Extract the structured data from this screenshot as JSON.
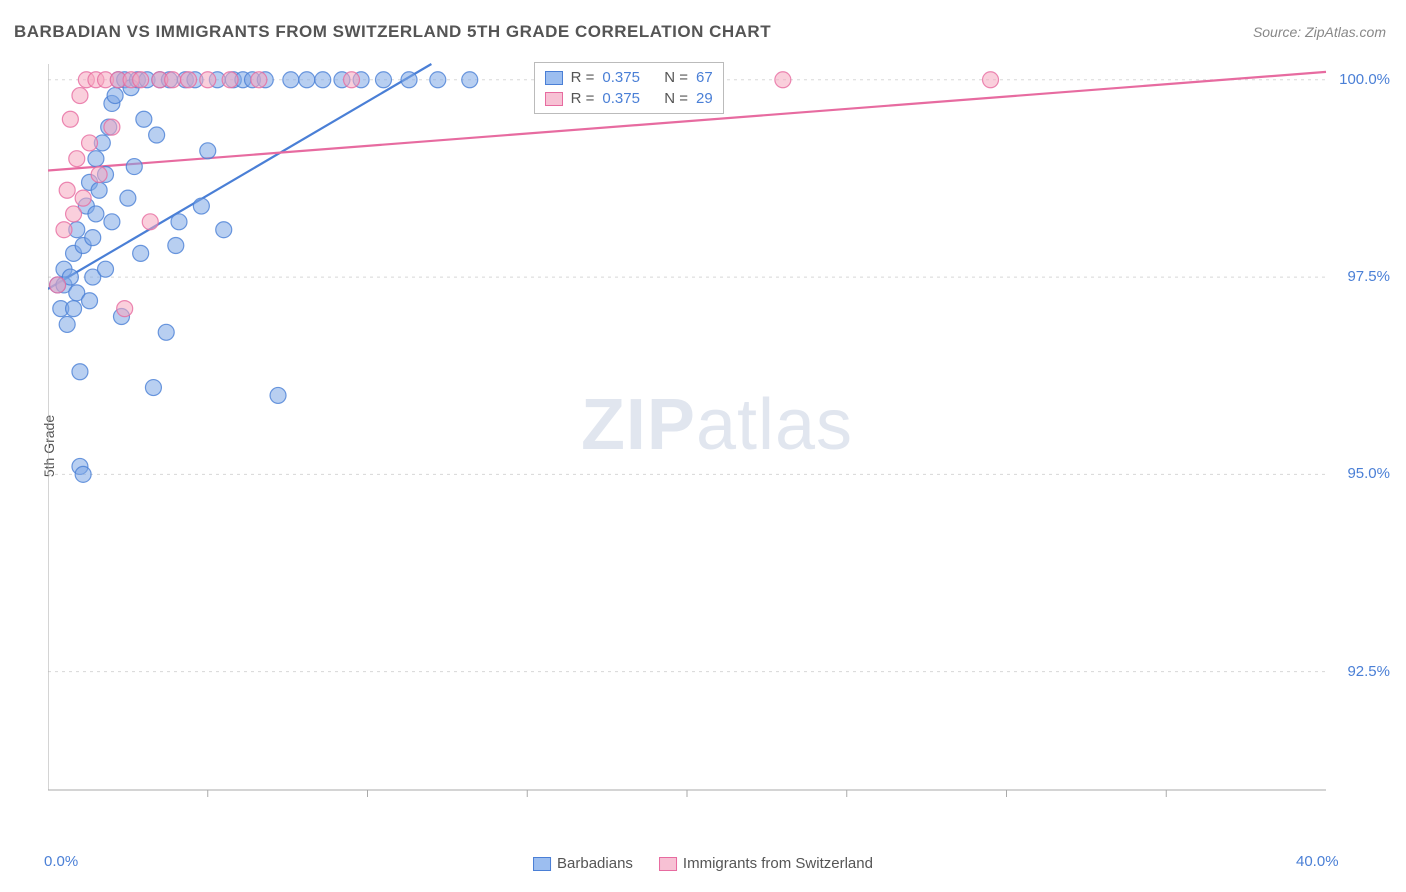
{
  "title": "BARBADIAN VS IMMIGRANTS FROM SWITZERLAND 5TH GRADE CORRELATION CHART",
  "source": "Source: ZipAtlas.com",
  "ylabel": "5th Grade",
  "watermark_bold": "ZIP",
  "watermark_rest": "atlas",
  "chart": {
    "type": "scatter-with-regression",
    "xlim": [
      0.0,
      40.0
    ],
    "ylim": [
      91.0,
      100.2
    ],
    "ytick_positions": [
      92.5,
      95.0,
      97.5,
      100.0
    ],
    "ytick_labels": [
      "92.5%",
      "95.0%",
      "97.5%",
      "100.0%"
    ],
    "xtick_positions": [
      0.0,
      40.0
    ],
    "xtick_labels": [
      "0.0%",
      "40.0%"
    ],
    "xtick_minor": [
      5,
      10,
      15,
      20,
      25,
      30,
      35
    ],
    "grid_color": "#d8d8d8",
    "axis_color": "#aaaaaa",
    "background_color": "#ffffff",
    "marker_radius": 8,
    "marker_opacity": 0.55,
    "series": [
      {
        "name": "Barbadians",
        "color_fill": "#7ea8e6",
        "color_stroke": "#4a7fd6",
        "points": [
          [
            0.3,
            97.4
          ],
          [
            0.4,
            97.1
          ],
          [
            0.5,
            97.6
          ],
          [
            0.5,
            97.4
          ],
          [
            0.6,
            96.9
          ],
          [
            0.7,
            97.5
          ],
          [
            0.8,
            97.8
          ],
          [
            0.8,
            97.1
          ],
          [
            0.9,
            98.1
          ],
          [
            0.9,
            97.3
          ],
          [
            1.0,
            96.3
          ],
          [
            1.0,
            95.1
          ],
          [
            1.1,
            95.0
          ],
          [
            1.1,
            97.9
          ],
          [
            1.2,
            98.4
          ],
          [
            1.3,
            98.7
          ],
          [
            1.3,
            97.2
          ],
          [
            1.4,
            98.0
          ],
          [
            1.4,
            97.5
          ],
          [
            1.5,
            99.0
          ],
          [
            1.5,
            98.3
          ],
          [
            1.6,
            98.6
          ],
          [
            1.7,
            99.2
          ],
          [
            1.8,
            98.8
          ],
          [
            1.8,
            97.6
          ],
          [
            1.9,
            99.4
          ],
          [
            2.0,
            99.7
          ],
          [
            2.0,
            98.2
          ],
          [
            2.1,
            99.8
          ],
          [
            2.2,
            100.0
          ],
          [
            2.3,
            97.0
          ],
          [
            2.4,
            100.0
          ],
          [
            2.5,
            98.5
          ],
          [
            2.6,
            99.9
          ],
          [
            2.7,
            98.9
          ],
          [
            2.8,
            100.0
          ],
          [
            2.9,
            97.8
          ],
          [
            3.0,
            99.5
          ],
          [
            3.1,
            100.0
          ],
          [
            3.3,
            96.1
          ],
          [
            3.4,
            99.3
          ],
          [
            3.5,
            100.0
          ],
          [
            3.7,
            96.8
          ],
          [
            3.8,
            100.0
          ],
          [
            4.0,
            97.9
          ],
          [
            4.1,
            98.2
          ],
          [
            4.3,
            100.0
          ],
          [
            4.6,
            100.0
          ],
          [
            4.8,
            98.4
          ],
          [
            5.0,
            99.1
          ],
          [
            5.3,
            100.0
          ],
          [
            5.5,
            98.1
          ],
          [
            5.8,
            100.0
          ],
          [
            6.1,
            100.0
          ],
          [
            6.4,
            100.0
          ],
          [
            6.8,
            100.0
          ],
          [
            7.2,
            96.0
          ],
          [
            7.6,
            100.0
          ],
          [
            8.1,
            100.0
          ],
          [
            8.6,
            100.0
          ],
          [
            9.2,
            100.0
          ],
          [
            9.8,
            100.0
          ],
          [
            10.5,
            100.0
          ],
          [
            11.3,
            100.0
          ],
          [
            12.2,
            100.0
          ],
          [
            13.2,
            100.0
          ],
          [
            16.8,
            100.0
          ]
        ],
        "regression": {
          "x1": 0.0,
          "y1": 97.35,
          "x2": 12.0,
          "y2": 100.2
        }
      },
      {
        "name": "Immigrants from Switzerland",
        "color_fill": "#f5a8c0",
        "color_stroke": "#e76ba0",
        "points": [
          [
            0.3,
            97.4
          ],
          [
            0.5,
            98.1
          ],
          [
            0.6,
            98.6
          ],
          [
            0.7,
            99.5
          ],
          [
            0.8,
            98.3
          ],
          [
            0.9,
            99.0
          ],
          [
            1.0,
            99.8
          ],
          [
            1.1,
            98.5
          ],
          [
            1.2,
            100.0
          ],
          [
            1.3,
            99.2
          ],
          [
            1.5,
            100.0
          ],
          [
            1.6,
            98.8
          ],
          [
            1.8,
            100.0
          ],
          [
            2.0,
            99.4
          ],
          [
            2.2,
            100.0
          ],
          [
            2.4,
            97.1
          ],
          [
            2.6,
            100.0
          ],
          [
            2.9,
            100.0
          ],
          [
            3.2,
            98.2
          ],
          [
            3.5,
            100.0
          ],
          [
            3.9,
            100.0
          ],
          [
            4.4,
            100.0
          ],
          [
            5.0,
            100.0
          ],
          [
            5.7,
            100.0
          ],
          [
            6.6,
            100.0
          ],
          [
            9.5,
            100.0
          ],
          [
            17.5,
            100.0
          ],
          [
            23.0,
            100.0
          ],
          [
            29.5,
            100.0
          ]
        ],
        "regression": {
          "x1": 0.0,
          "y1": 98.85,
          "x2": 40.0,
          "y2": 100.1
        }
      }
    ]
  },
  "top_legend": {
    "rows": [
      {
        "swatch_fill": "#9cbef0",
        "swatch_stroke": "#4a7fd6",
        "r_label": "R =",
        "r_val": "0.375",
        "n_label": "N =",
        "n_val": "67"
      },
      {
        "swatch_fill": "#f7c1d4",
        "swatch_stroke": "#e76ba0",
        "r_label": "R =",
        "r_val": "0.375",
        "n_label": "N =",
        "n_val": "29"
      }
    ]
  },
  "bottom_legend": {
    "items": [
      {
        "swatch_fill": "#9cbef0",
        "swatch_stroke": "#4a7fd6",
        "label": "Barbadians"
      },
      {
        "swatch_fill": "#f7c1d4",
        "swatch_stroke": "#e76ba0",
        "label": "Immigrants from Switzerland"
      }
    ]
  }
}
